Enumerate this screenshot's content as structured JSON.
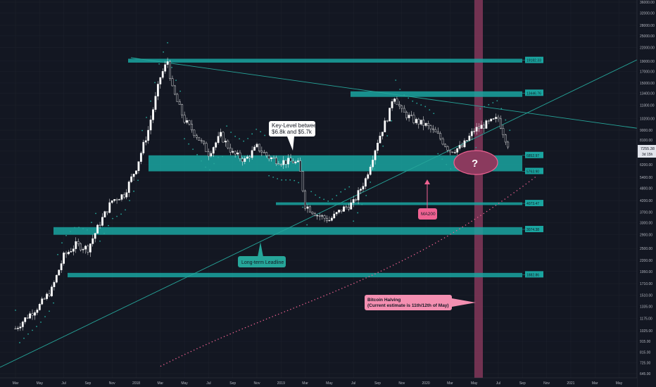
{
  "chart_data": {
    "type": "candlestick",
    "title": "",
    "x_ticks": [
      "Mar",
      "May",
      "Jul",
      "Sep",
      "Nov",
      "2018",
      "Mar",
      "May",
      "Jul",
      "Sep",
      "Nov",
      "2019",
      "Mar",
      "May",
      "Jul",
      "Sep",
      "Nov",
      "2020",
      "Mar",
      "May",
      "Jul",
      "Sep",
      "Nov",
      "2021",
      "Mar",
      "May"
    ],
    "y_ticks": [
      "36000.00",
      "32000.00",
      "28000.00",
      "25000.00",
      "22000.00",
      "19000.00",
      "17000.00",
      "15000.00",
      "13400.00",
      "11800.00",
      "10200.00",
      "9000.00",
      "8100.00",
      "7200.00",
      "6200.00",
      "5400.00",
      "4800.00",
      "4200.00",
      "3700.00",
      "3300.00",
      "2900.00",
      "2500.00",
      "2200.00",
      "1950.00",
      "1710.00",
      "1510.00",
      "1335.00",
      "1175.00",
      "1025.00",
      "915.00",
      "815.00",
      "725.00",
      "645.00"
    ],
    "price_badge": {
      "value": "7255.38",
      "countdown": "3d 15h"
    },
    "levels": [
      {
        "label": "19182.33",
        "value": 19182.33,
        "zone": [
          18700,
          19500
        ]
      },
      {
        "label": "13446.76",
        "value": 13446.76,
        "zone": [
          12900,
          13700
        ]
      },
      {
        "label": "6852.97",
        "value": 6852.97,
        "zone": [
          5763.9,
          6852.97
        ]
      },
      {
        "label": "5763.90",
        "value": 5763.9
      },
      {
        "label": "4073.47",
        "value": 4073.47,
        "zone": [
          4000,
          4120
        ]
      },
      {
        "label": "3074.38",
        "value": 3074.38,
        "zone": [
          2900,
          3150
        ]
      },
      {
        "label": "1882.86",
        "value": 1882.86,
        "zone": [
          1830,
          1920
        ]
      }
    ],
    "series": [
      {
        "name": "MA200"
      }
    ],
    "annotations": {
      "key_level": [
        "Key-Level between",
        "$6.8k and $5.7k"
      ],
      "ma200": "MA200",
      "leadline": "Long-term Leadline",
      "halving": [
        "Bitcoin Halving",
        "(Current estimate is 11th/12th of May)"
      ],
      "question": "?"
    },
    "halving_band_label": "",
    "colors": {
      "teal": "#26a69a",
      "level": "#1aa5a0",
      "pink": "#f06292",
      "halving_band": "#8b3a5e",
      "background": "#131722"
    }
  }
}
